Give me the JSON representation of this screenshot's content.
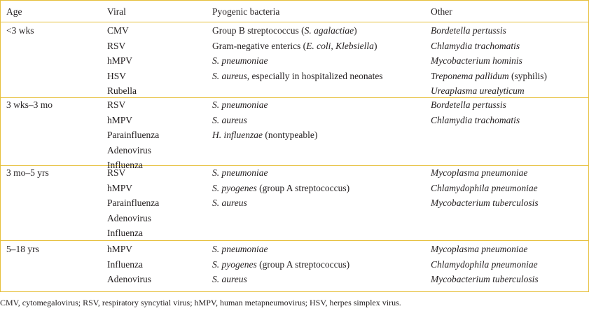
{
  "header": [
    "Age",
    "Viral",
    "Pyogenic bacteria",
    "Other"
  ],
  "border_color": "#e6bf3a",
  "groups": [
    {
      "age": "<3 wks",
      "viral": [
        "CMV",
        "RSV",
        "hMPV",
        "HSV",
        "Rubella"
      ],
      "bacteria": [
        [
          {
            "t": "Group B streptococcus ("
          },
          {
            "t": "S. agalactiae",
            "i": true
          },
          {
            "t": ")"
          }
        ],
        [
          {
            "t": "Gram-negative enterics ("
          },
          {
            "t": "E. coli, Klebsiella",
            "i": true
          },
          {
            "t": ")"
          }
        ],
        [
          {
            "t": "S. pneumoniae",
            "i": true
          }
        ],
        [
          {
            "t": "S. aureus",
            "i": true
          },
          {
            "t": ", especially in hospitalized neonates"
          }
        ]
      ],
      "other": [
        [
          {
            "t": "Bordetella pertussis",
            "i": true
          }
        ],
        [
          {
            "t": "Chlamydia trachomatis",
            "i": true
          }
        ],
        [
          {
            "t": "Mycobacterium hominis",
            "i": true
          }
        ],
        [
          {
            "t": "Treponema pallidum",
            "i": true
          },
          {
            "t": " (syphilis)"
          }
        ],
        [
          {
            "t": "Ureaplasma urealyticum",
            "i": true
          }
        ]
      ]
    },
    {
      "age": "3 wks–3 mo",
      "viral": [
        "RSV",
        "hMPV",
        "Parainfluenza",
        "Adenovirus",
        "Influenza"
      ],
      "bacteria": [
        [
          {
            "t": "S. pneumoniae",
            "i": true
          }
        ],
        [
          {
            "t": "S. aureus",
            "i": true
          }
        ],
        [
          {
            "t": "H. influenzae",
            "i": true
          },
          {
            "t": " (nontypeable)"
          }
        ]
      ],
      "other": [
        [
          {
            "t": "Bordetella pertussis",
            "i": true
          }
        ],
        [
          {
            "t": "Chlamydia trachomatis",
            "i": true
          }
        ]
      ]
    },
    {
      "age": "3 mo–5 yrs",
      "viral": [
        "RSV",
        "hMPV",
        "Parainfluenza",
        "Adenovirus",
        "Influenza"
      ],
      "bacteria": [
        [
          {
            "t": "S. pneumoniae",
            "i": true
          }
        ],
        [
          {
            "t": "S. pyogenes",
            "i": true
          },
          {
            "t": " (group A streptococcus)"
          }
        ],
        [
          {
            "t": "S. aureus",
            "i": true
          }
        ]
      ],
      "other": [
        [
          {
            "t": "Mycoplasma pneumoniae",
            "i": true
          }
        ],
        [
          {
            "t": "Chlamydophila pneumoniae",
            "i": true
          }
        ],
        [
          {
            "t": "Mycobacterium tuberculosis",
            "i": true
          }
        ]
      ]
    },
    {
      "age": "5–18 yrs",
      "viral": [
        "hMPV",
        "Influenza",
        "Adenovirus"
      ],
      "bacteria": [
        [
          {
            "t": "S. pneumoniae",
            "i": true
          }
        ],
        [
          {
            "t": "S. pyogenes",
            "i": true
          },
          {
            "t": " (group A streptococcus)"
          }
        ],
        [
          {
            "t": "S. aureus",
            "i": true
          }
        ]
      ],
      "other": [
        [
          {
            "t": "Mycoplasma pneumoniae",
            "i": true
          }
        ],
        [
          {
            "t": "Chlamydophila pneumoniae",
            "i": true
          }
        ],
        [
          {
            "t": "Mycobacterium tuberculosis",
            "i": true
          }
        ]
      ]
    }
  ],
  "footnote": "CMV, cytomegalovirus; RSV, respiratory syncytial virus; hMPV, human metapneumovirus; HSV, herpes simplex virus."
}
